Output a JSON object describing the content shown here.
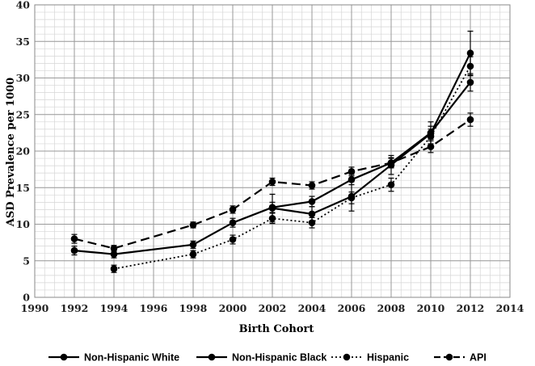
{
  "chart_data": {
    "type": "line",
    "title": "",
    "xlabel": "Birth Cohort",
    "ylabel": "ASD Prevalence per 1000",
    "xlim": [
      1990,
      2014
    ],
    "ylim": [
      0,
      40
    ],
    "x_ticks": [
      1990,
      1992,
      1994,
      1996,
      1998,
      2000,
      2002,
      2004,
      2006,
      2008,
      2010,
      2012,
      2014
    ],
    "y_ticks": [
      0,
      5,
      10,
      15,
      20,
      25,
      30,
      35,
      40
    ],
    "grid": true,
    "legend_position": "bottom",
    "series": [
      {
        "name": "Non-Hispanic White",
        "style": "solid",
        "color": "#000000",
        "points": [
          {
            "x": 1992,
            "y": 6.4,
            "err": 0.6
          },
          {
            "x": 1994,
            "y": 5.9,
            "err": 0.5
          },
          {
            "x": 1998,
            "y": 7.2,
            "err": 0.5
          },
          {
            "x": 2000,
            "y": 10.2,
            "err": 0.6
          },
          {
            "x": 2002,
            "y": 12.3,
            "err": 0.7
          },
          {
            "x": 2004,
            "y": 13.1,
            "err": 0.7
          },
          {
            "x": 2006,
            "y": 16.1,
            "err": 0.7
          },
          {
            "x": 2008,
            "y": 18.4,
            "err": 0.7
          },
          {
            "x": 2010,
            "y": 22.5,
            "err": 0.9
          },
          {
            "x": 2012,
            "y": 29.4,
            "err": 1.2
          }
        ]
      },
      {
        "name": "Non-Hispanic Black",
        "style": "solid",
        "color": "#000000",
        "points": [
          {
            "x": 2002,
            "y": 12.2,
            "err": 1.9
          },
          {
            "x": 2004,
            "y": 11.4,
            "err": 1.0
          },
          {
            "x": 2006,
            "y": 13.8,
            "err": 2.0
          },
          {
            "x": 2008,
            "y": 18.1,
            "err": 1.3
          },
          {
            "x": 2010,
            "y": 22.4,
            "err": 1.6
          },
          {
            "x": 2012,
            "y": 33.4,
            "err": 3.0
          }
        ]
      },
      {
        "name": "Hispanic",
        "style": "dotted",
        "color": "#000000",
        "points": [
          {
            "x": 1994,
            "y": 3.9,
            "err": 0.5
          },
          {
            "x": 1998,
            "y": 5.9,
            "err": 0.5
          },
          {
            "x": 2000,
            "y": 7.9,
            "err": 0.6
          },
          {
            "x": 2002,
            "y": 10.8,
            "err": 0.7
          },
          {
            "x": 2004,
            "y": 10.2,
            "err": 0.7
          },
          {
            "x": 2006,
            "y": 13.6,
            "err": 0.8
          },
          {
            "x": 2008,
            "y": 15.4,
            "err": 0.9
          },
          {
            "x": 2010,
            "y": 22.0,
            "err": 1.0
          },
          {
            "x": 2012,
            "y": 31.6,
            "err": 1.3
          }
        ]
      },
      {
        "name": "API",
        "style": "dashed",
        "color": "#000000",
        "points": [
          {
            "x": 1992,
            "y": 8.0,
            "err": 0.6
          },
          {
            "x": 1994,
            "y": 6.7,
            "err": 0.4
          },
          {
            "x": 1998,
            "y": 9.9,
            "err": 0.4
          },
          {
            "x": 2000,
            "y": 12.0,
            "err": 0.5
          },
          {
            "x": 2002,
            "y": 15.8,
            "err": 0.5
          },
          {
            "x": 2004,
            "y": 15.3,
            "err": 0.5
          },
          {
            "x": 2006,
            "y": 17.2,
            "err": 0.6
          },
          {
            "x": 2008,
            "y": 18.4,
            "err": 0.6
          },
          {
            "x": 2010,
            "y": 20.6,
            "err": 0.8
          },
          {
            "x": 2012,
            "y": 24.3,
            "err": 0.9
          }
        ]
      }
    ]
  }
}
